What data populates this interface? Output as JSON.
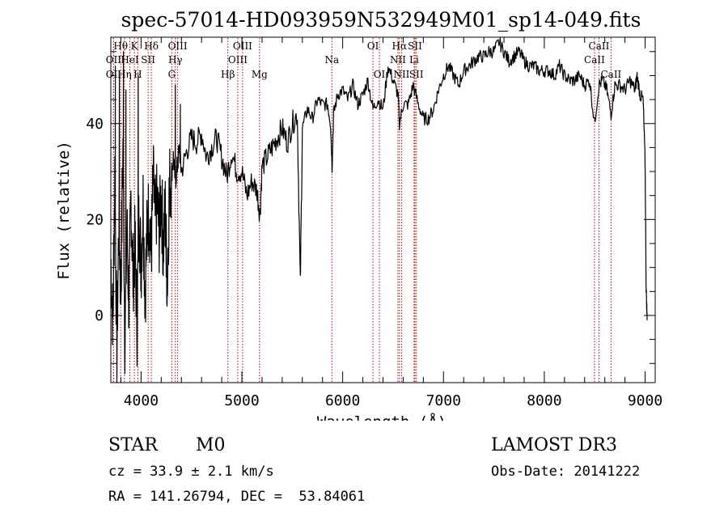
{
  "chart_data": {
    "type": "line",
    "title": "spec-57014-HD093959N532949M01_sp14-049.fits",
    "xlabel": "Wavelength (Å)",
    "ylabel": "Flux (relative)",
    "xlim": [
      3700,
      9100
    ],
    "ylim": [
      -14,
      58
    ],
    "xticks": [
      4000,
      5000,
      6000,
      7000,
      8000,
      9000
    ],
    "yticks": [
      0,
      20,
      40
    ],
    "line_color": "#000000",
    "marker_color": "#c00000",
    "series": [
      {
        "name": "flux",
        "x": [
          3700,
          3720,
          3740,
          3760,
          3780,
          3800,
          3820,
          3840,
          3860,
          3880,
          3900,
          3920,
          3940,
          3960,
          3980,
          4000,
          4020,
          4040,
          4060,
          4080,
          4100,
          4120,
          4140,
          4160,
          4180,
          4200,
          4220,
          4240,
          4260,
          4280,
          4300,
          4320,
          4340,
          4360,
          4380,
          4400,
          4450,
          4500,
          4550,
          4600,
          4650,
          4700,
          4750,
          4800,
          4850,
          4900,
          4950,
          5000,
          5050,
          5100,
          5150,
          5180,
          5200,
          5250,
          5300,
          5350,
          5400,
          5450,
          5500,
          5550,
          5580,
          5600,
          5650,
          5700,
          5750,
          5800,
          5850,
          5880,
          5895,
          5910,
          5950,
          6000,
          6050,
          6100,
          6150,
          6200,
          6250,
          6300,
          6350,
          6400,
          6450,
          6500,
          6550,
          6563,
          6600,
          6650,
          6700,
          6750,
          6800,
          6850,
          6900,
          6950,
          7000,
          7050,
          7100,
          7150,
          7200,
          7250,
          7300,
          7350,
          7400,
          7450,
          7500,
          7550,
          7600,
          7650,
          7700,
          7750,
          7800,
          7850,
          7900,
          7950,
          8000,
          8050,
          8100,
          8150,
          8200,
          8250,
          8300,
          8350,
          8400,
          8450,
          8498,
          8542,
          8580,
          8620,
          8662,
          8700,
          8750,
          8800,
          8850,
          8900,
          8920,
          8950,
          8980,
          9000,
          9010,
          9020
        ],
        "y": [
          12,
          -2,
          30,
          -8,
          20,
          5,
          35,
          -4,
          18,
          2,
          25,
          8,
          15,
          -2,
          22,
          10,
          24,
          4,
          18,
          22,
          12,
          28,
          20,
          24,
          17,
          26,
          14,
          22,
          6,
          27,
          29,
          33,
          28,
          31,
          35,
          30,
          34,
          37,
          36,
          38,
          33,
          35,
          37,
          33,
          29,
          34,
          30,
          30,
          25,
          28,
          26,
          21,
          31,
          33,
          35,
          37,
          39,
          36,
          40,
          42,
          6,
          39,
          43,
          41,
          45,
          44,
          44,
          40,
          31,
          42,
          46,
          47,
          45,
          48,
          44,
          46,
          49,
          43,
          45,
          43,
          52,
          49,
          46,
          40,
          44,
          44,
          48,
          44,
          41,
          41,
          43,
          47,
          50,
          52,
          50,
          48,
          51,
          52,
          53,
          54,
          54,
          55,
          55,
          57,
          55,
          53,
          54,
          55,
          53,
          52,
          52,
          51,
          51,
          51,
          50,
          52,
          50,
          49,
          49,
          50,
          48,
          49,
          40,
          48,
          49,
          47,
          42,
          48,
          48,
          47,
          49,
          47,
          50,
          46,
          45,
          32,
          6,
          -1
        ],
        "spikes": [
          [
            3745,
            52
          ],
          [
            3785,
            50
          ],
          [
            3825,
            55
          ],
          [
            3850,
            47
          ],
          [
            3972,
            50
          ],
          [
            4340,
            48
          ],
          [
            4390,
            44
          ],
          [
            4250,
            8
          ]
        ]
      }
    ],
    "lines": [
      {
        "label": "Hθ",
        "x": 3798,
        "row": 0
      },
      {
        "label": "OII",
        "x": 3727,
        "row": 1
      },
      {
        "label": "OII",
        "x": 3727,
        "row": 2
      },
      {
        "label": "Hη",
        "x": 3835,
        "row": 2
      },
      {
        "label": "HeI",
        "x": 3889,
        "row": 1
      },
      {
        "label": "K",
        "x": 3934,
        "row": 0
      },
      {
        "label": "H",
        "x": 3968,
        "row": 2
      },
      {
        "label": "SII",
        "x": 4070,
        "row": 1
      },
      {
        "label": "Hδ",
        "x": 4102,
        "row": 0
      },
      {
        "label": "OIII",
        "x": 4363,
        "row": 0
      },
      {
        "label": "Hγ",
        "x": 4340,
        "row": 1
      },
      {
        "label": "G",
        "x": 4305,
        "row": 2
      },
      {
        "label": "Hβ",
        "x": 4861,
        "row": 2
      },
      {
        "label": "OIII",
        "x": 5007,
        "row": 0
      },
      {
        "label": "OIII",
        "x": 4959,
        "row": 1
      },
      {
        "label": "Mg",
        "x": 5175,
        "row": 2
      },
      {
        "label": "Na",
        "x": 5893,
        "row": 1
      },
      {
        "label": "OI",
        "x": 6300,
        "row": 0
      },
      {
        "label": "OI",
        "x": 6364,
        "row": 2
      },
      {
        "label": "Hα",
        "x": 6563,
        "row": 0
      },
      {
        "label": "NII",
        "x": 6548,
        "row": 1
      },
      {
        "label": "NII",
        "x": 6584,
        "row": 2
      },
      {
        "label": "Li",
        "x": 6708,
        "row": 1
      },
      {
        "label": "SII",
        "x": 6717,
        "row": 0
      },
      {
        "label": "SII",
        "x": 6731,
        "row": 2
      },
      {
        "label": "CaII",
        "x": 8542,
        "row": 0
      },
      {
        "label": "CaII",
        "x": 8498,
        "row": 1
      },
      {
        "label": "CaII",
        "x": 8662,
        "row": 2
      }
    ]
  },
  "info": {
    "class": "STAR",
    "subclass": "M0",
    "survey": "LAMOST DR3",
    "cz": "cz = 33.9 ± 2.1 km/s",
    "obs_date": "Obs-Date: 20141222",
    "coords": "RA = 141.26794, DEC =  53.84061"
  }
}
